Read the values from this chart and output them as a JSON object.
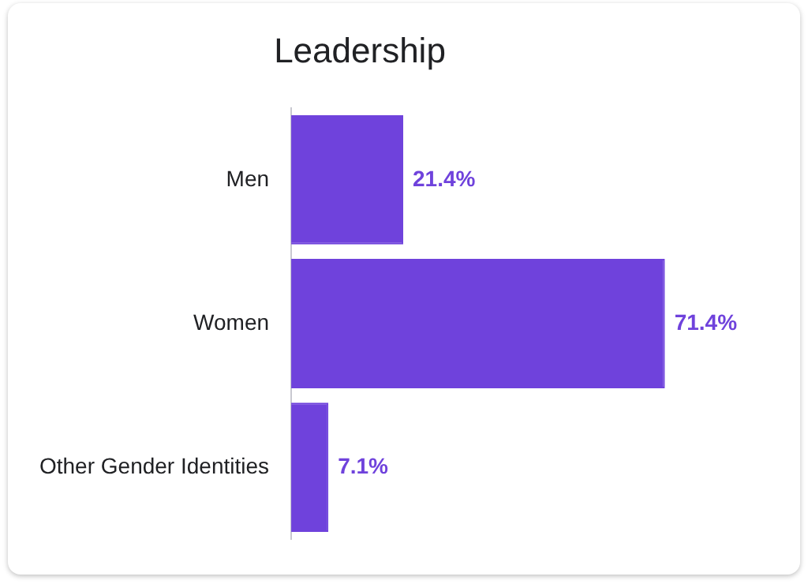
{
  "chart_data": {
    "type": "bar",
    "orientation": "horizontal",
    "title": "Leadership",
    "categories": [
      "Men",
      "Women",
      "Other Gender Identities"
    ],
    "values": [
      21.4,
      71.4,
      7.1
    ],
    "color": "#6f42dc",
    "value_labels": [
      "21.4%",
      "71.4%",
      "7.1%"
    ],
    "legend": false,
    "tick_labels": "y"
  }
}
